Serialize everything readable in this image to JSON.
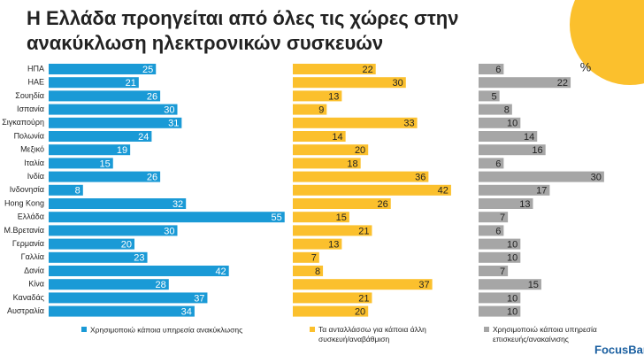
{
  "chart_data": {
    "type": "bar",
    "orientation": "horizontal",
    "title_lines": [
      "Η Ελλάδα προηγείται από όλες τις χώρες στην",
      "ανακύκλωση ηλεκτρονικών συσκευών"
    ],
    "unit": "%",
    "categories": [
      "ΗΠΑ",
      "ΗΑΕ",
      "Σουηδία",
      "Ισπανία",
      "Σιγκαπούρη",
      "Πολωνία",
      "Μεξικό",
      "Ιταλία",
      "Ινδία",
      "Ινδονησία",
      "Hong Kong",
      "Ελλάδα",
      "Μ.Βρετανία",
      "Γερμανία",
      "Γαλλία",
      "Δανία",
      "Κίνα",
      "Καναδάς",
      "Αυστραλία"
    ],
    "series": [
      {
        "name": "Χρησιμοποιώ κάποια υπηρεσία ανακύκλωσης",
        "color": "#1a9ad6",
        "label_color": "#ffffff",
        "values": [
          25,
          21,
          26,
          30,
          31,
          24,
          19,
          15,
          26,
          8,
          32,
          55,
          30,
          20,
          23,
          42,
          28,
          37,
          34
        ]
      },
      {
        "name": "Τα ανταλλάσσω για κάποια άλλη συσκευή/αναβάθμιση",
        "color": "#fbc02d",
        "label_color": "#222222",
        "values": [
          22,
          30,
          13,
          9,
          33,
          14,
          20,
          18,
          36,
          42,
          26,
          15,
          21,
          13,
          7,
          8,
          37,
          21,
          20
        ]
      },
      {
        "name": "Χρησιμοποιώ κάποια υπηρεσία επισκευής/ανακαίνισης",
        "color": "#a6a6a6",
        "label_color": "#222222",
        "values": [
          6,
          22,
          5,
          8,
          10,
          14,
          16,
          6,
          30,
          17,
          13,
          7,
          6,
          10,
          10,
          7,
          15,
          10,
          10
        ]
      }
    ],
    "logo": "FocusBari"
  }
}
